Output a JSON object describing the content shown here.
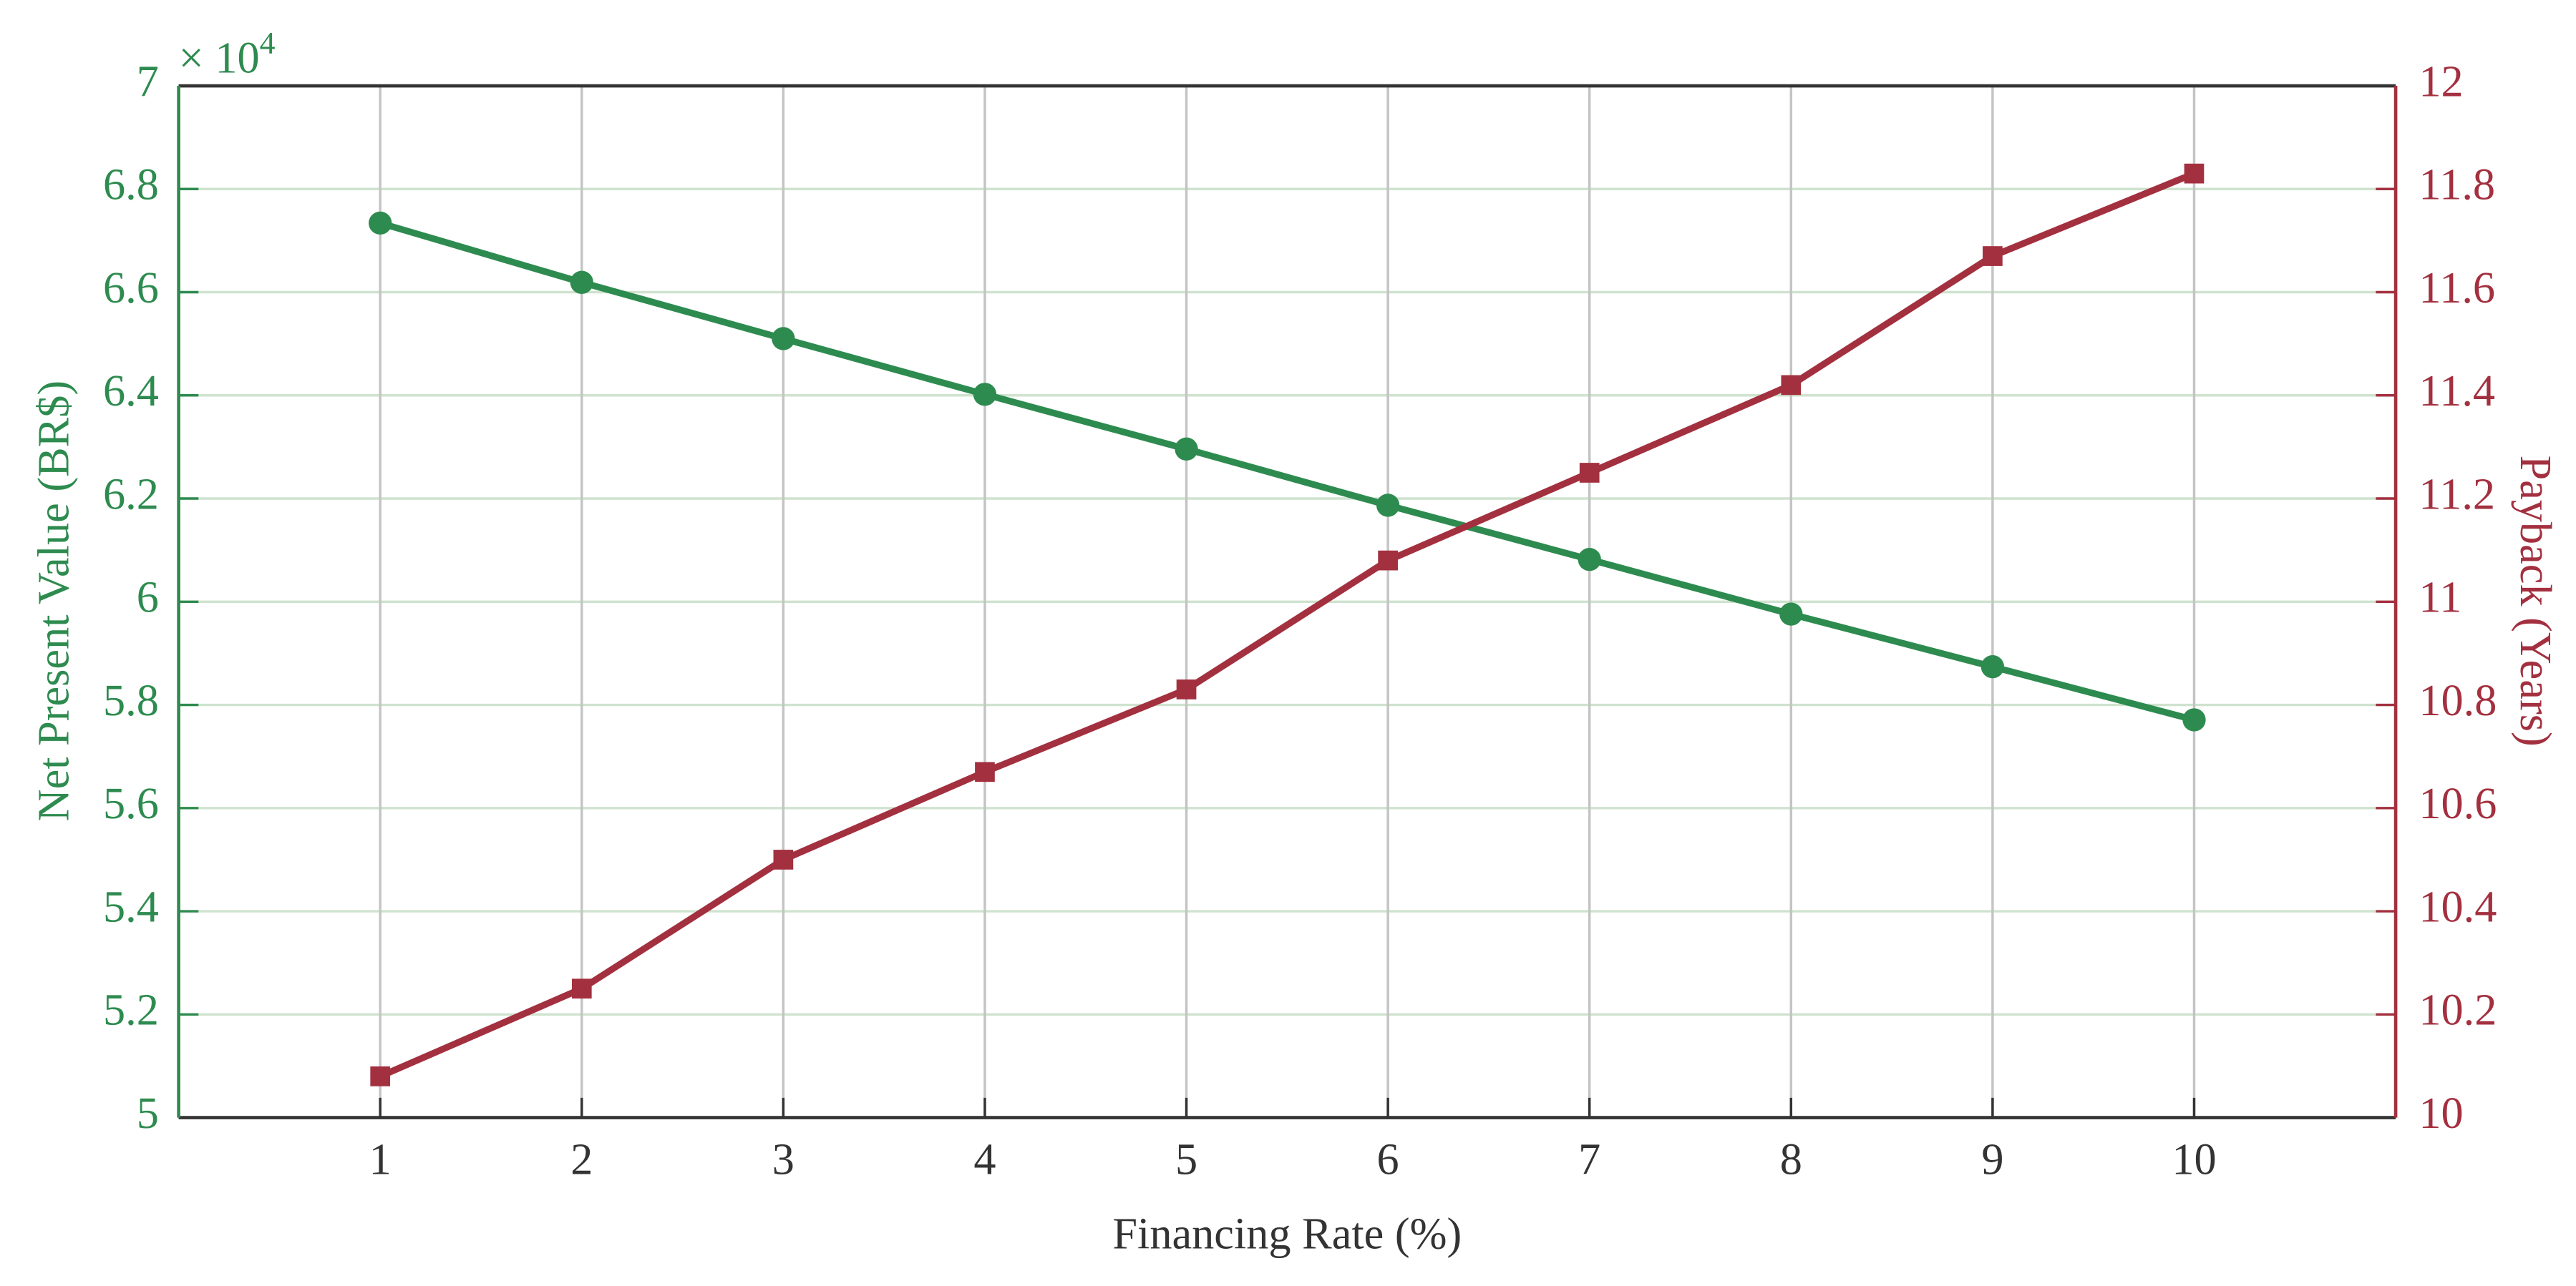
{
  "chart_data": {
    "type": "line",
    "x_label": "Financing Rate (%)",
    "y_label": "Net Present Value (BR$)",
    "y2_label": "Payback (Years)",
    "y_multiplier_base": "× 10",
    "y_multiplier_exponent": "4",
    "x": [
      1,
      2,
      3,
      4,
      5,
      6,
      7,
      8,
      9,
      10
    ],
    "xlim": [
      0,
      11
    ],
    "xticks": [
      1,
      2,
      3,
      4,
      5,
      6,
      7,
      8,
      9,
      10
    ],
    "ylim": [
      50000,
      70000
    ],
    "yticks": [
      {
        "value": 50000,
        "label": "5"
      },
      {
        "value": 52000,
        "label": "5.2"
      },
      {
        "value": 54000,
        "label": "5.4"
      },
      {
        "value": 56000,
        "label": "5.6"
      },
      {
        "value": 58000,
        "label": "5.8"
      },
      {
        "value": 60000,
        "label": "6"
      },
      {
        "value": 62000,
        "label": "6.2"
      },
      {
        "value": 64000,
        "label": "6.4"
      },
      {
        "value": 66000,
        "label": "6.6"
      },
      {
        "value": 68000,
        "label": "6.8"
      },
      {
        "value": 70000,
        "label": "7"
      }
    ],
    "y2lim": [
      10,
      12
    ],
    "y2ticks": [
      10,
      10.2,
      10.4,
      10.6,
      10.8,
      11,
      11.2,
      11.4,
      11.6,
      11.8,
      12
    ],
    "grid": true,
    "series": [
      {
        "name": "Net Present Value",
        "color": "#2e8b4f",
        "marker": "circle",
        "values": [
          67340,
          66190,
          65100,
          64020,
          62960,
          61870,
          60820,
          59760,
          58740,
          57710
        ]
      },
      {
        "name": "Payback",
        "color": "#a3303f",
        "marker": "square",
        "axis": "y2",
        "values": [
          10.08,
          10.25,
          10.5,
          10.67,
          10.83,
          11.08,
          11.25,
          11.42,
          11.67,
          11.83
        ]
      }
    ]
  }
}
